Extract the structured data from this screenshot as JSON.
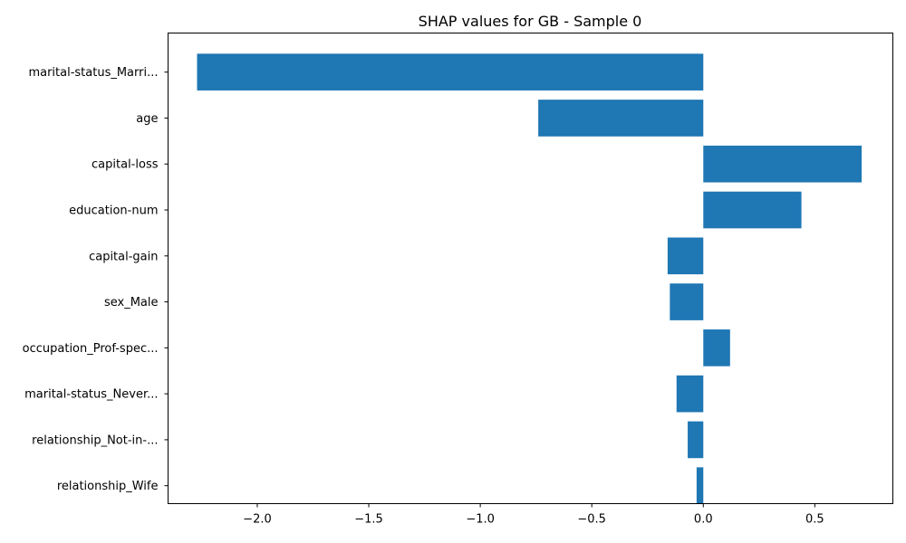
{
  "chart_data": {
    "type": "bar",
    "orientation": "horizontal",
    "title": "SHAP values for GB - Sample 0",
    "xlabel": "",
    "ylabel": "",
    "categories": [
      "marital-status_Marri...",
      "age",
      "capital-loss",
      "education-num",
      "capital-gain",
      "sex_Male",
      "occupation_Prof-spec...",
      "marital-status_Never...",
      "relationship_Not-in-...",
      "relationship_Wife"
    ],
    "values": [
      -2.27,
      -0.74,
      0.71,
      0.44,
      -0.16,
      -0.15,
      0.12,
      -0.12,
      -0.07,
      -0.03
    ],
    "xlim": [
      -2.4,
      0.85
    ],
    "xticks": [
      -2.0,
      -1.5,
      -1.0,
      -0.5,
      0.0,
      0.5
    ],
    "xtick_labels": [
      "−2.0",
      "−1.5",
      "−1.0",
      "−0.5",
      "0.0",
      "0.5"
    ],
    "grid": false,
    "bar_color": "#1f77b4"
  }
}
